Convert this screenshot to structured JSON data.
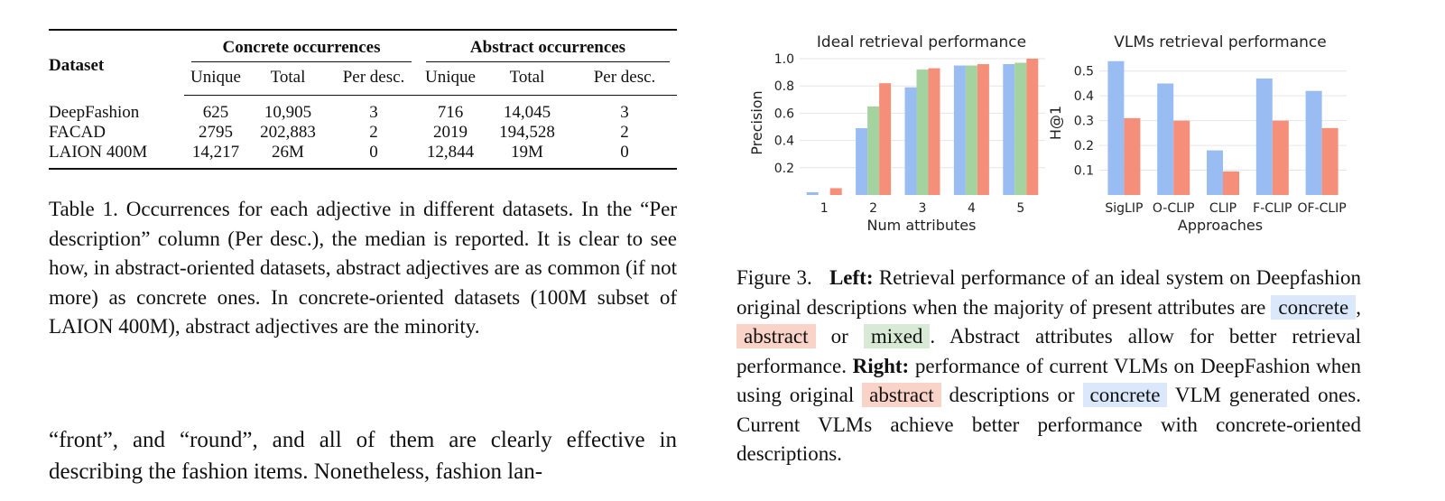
{
  "table": {
    "dataset_header": "Dataset",
    "group_concrete": "Concrete occurrences",
    "group_abstract": "Abstract occurrences",
    "subheaders": [
      "Unique",
      "Total",
      "Per desc.",
      "Unique",
      "Total",
      "Per desc."
    ],
    "rows": [
      {
        "name": "DeepFashion",
        "cells": [
          "625",
          "10,905",
          "3",
          "716",
          "14,045",
          "3"
        ]
      },
      {
        "name": "FACAD",
        "cells": [
          "2795",
          "202,883",
          "2",
          "2019",
          "194,528",
          "2"
        ]
      },
      {
        "name": "LAION 400M",
        "cells": [
          "14,217",
          "26M",
          "0",
          "12,844",
          "19M",
          "0"
        ]
      }
    ]
  },
  "caption1": "Table 1. Occurrences for each adjective in different datasets. In the “Per description” column (Per desc.), the median is reported. It is clear to see how, in abstract-oriented datasets, abstract adjectives are as common (if not more) as concrete ones. In concrete-oriented datasets (100M subset of LAION 400M), abstract adjectives are the minority.",
  "body_text": "“front”, and “round”, and all of them are clearly effective in describing the fashion items. Nonetheless, fashion lan-",
  "caption3": {
    "lead": "Figure 3.",
    "left_label": "Left:",
    "t1": " Retrieval performance of an ideal system on Deepfashion original descriptions when the majority of present attributes are ",
    "w_concrete": "concrete",
    "t2": ", ",
    "w_abstract": "abstract",
    "t3": " or ",
    "w_mixed": "mixed",
    "t4": ". Abstract attributes allow for better retrieval performance. ",
    "right_label": "Right:",
    "t5": " performance of current VLMs on DeepFashion when using original ",
    "w_abstract2": "abstract",
    "t6": " descriptions or ",
    "w_concrete2": "concrete",
    "t7": " VLM generated ones.  Current VLMs achieve better performance with concrete-oriented descriptions."
  },
  "colors": {
    "concrete": "#99bdf2",
    "abstract": "#f58f7a",
    "mixed": "#a4d3a0",
    "grid": "#e6e6e6"
  },
  "chart_data": [
    {
      "type": "bar",
      "title": "Ideal retrieval performance",
      "xlabel": "Num attributes",
      "ylabel": "Precision",
      "categories": [
        "1",
        "2",
        "3",
        "4",
        "5"
      ],
      "series": [
        {
          "key": "concrete",
          "values": [
            0.02,
            0.49,
            0.79,
            0.95,
            0.96
          ]
        },
        {
          "key": "mixed",
          "values": [
            0.0,
            0.65,
            0.92,
            0.95,
            0.97
          ]
        },
        {
          "key": "abstract",
          "values": [
            0.05,
            0.82,
            0.93,
            0.96,
            1.0
          ]
        }
      ],
      "yticks": [
        "0.2",
        "0.4",
        "0.6",
        "0.8",
        "1.0"
      ],
      "ylim": [
        0,
        1.0
      ],
      "grid": true
    },
    {
      "type": "bar",
      "title": "VLMs retrieval performance",
      "xlabel": "Approaches",
      "ylabel": "H@1",
      "categories": [
        "SigLIP",
        "O-CLIP",
        "CLIP",
        "F-CLIP",
        "OF-CLIP"
      ],
      "series": [
        {
          "key": "concrete",
          "values": [
            0.54,
            0.45,
            0.18,
            0.47,
            0.42
          ]
        },
        {
          "key": "abstract",
          "values": [
            0.31,
            0.3,
            0.095,
            0.3,
            0.27
          ]
        }
      ],
      "yticks": [
        "0.1",
        "0.2",
        "0.3",
        "0.4",
        "0.5"
      ],
      "ylim": [
        0,
        0.55
      ],
      "grid": true
    }
  ]
}
